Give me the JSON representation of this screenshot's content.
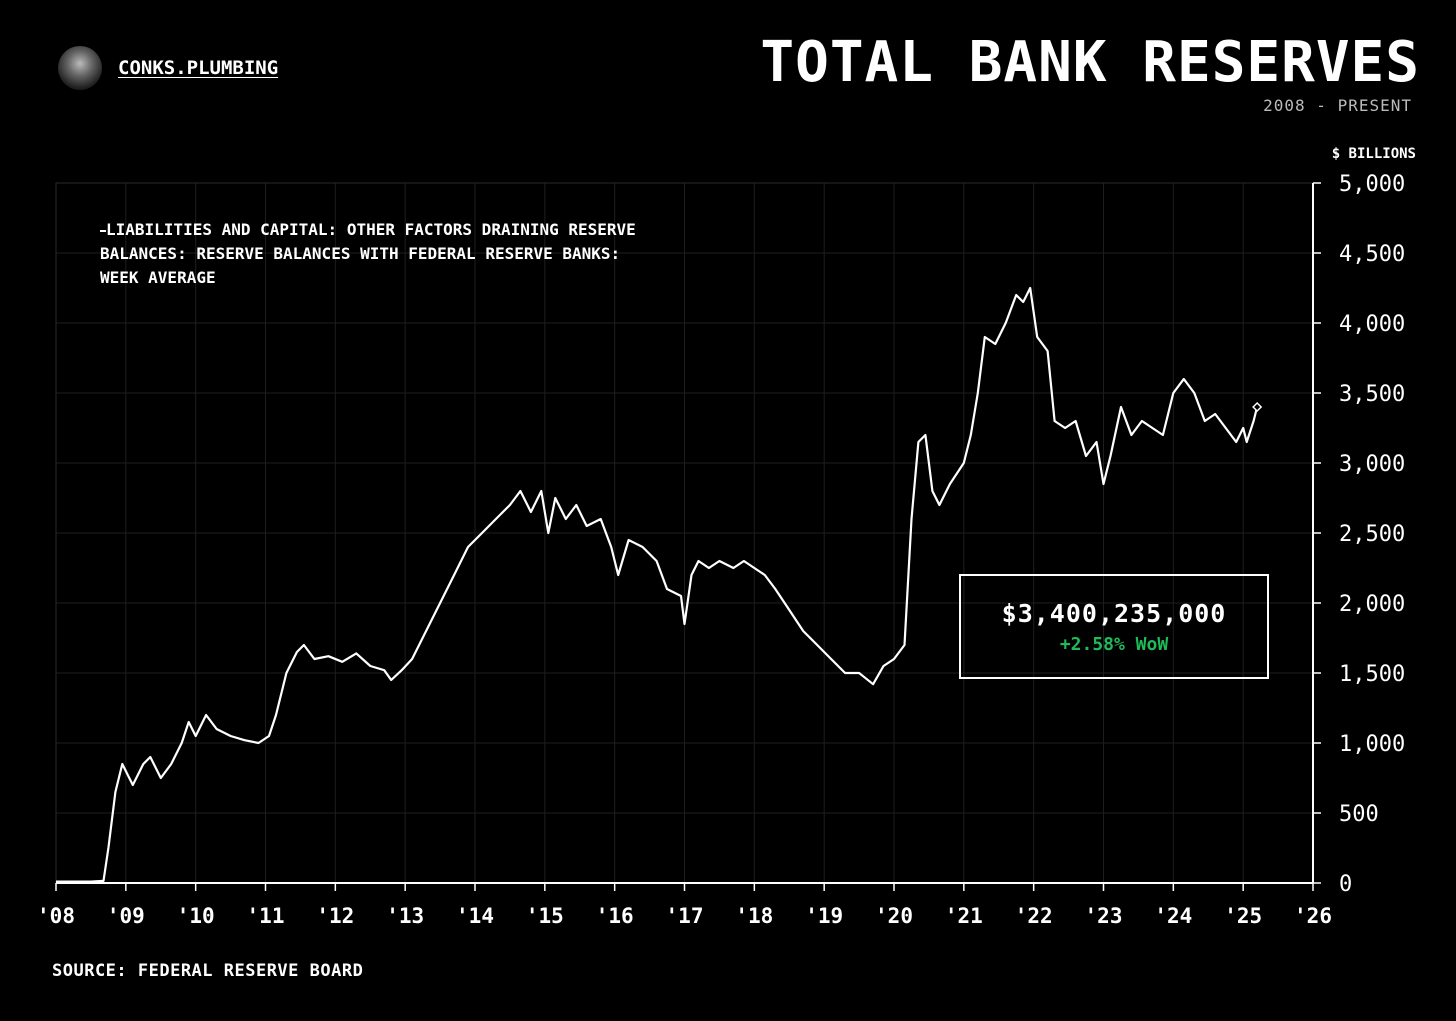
{
  "brand": {
    "name": "CONKS.PLUMBING"
  },
  "header": {
    "title": "TOTAL BANK RESERVES",
    "subtitle": "2008 - PRESENT"
  },
  "source": "SOURCE: FEDERAL RESERVE BOARD",
  "legend": {
    "label": "LIABILITIES AND CAPITAL: OTHER FACTORS DRAINING RESERVE BALANCES: RESERVE BALANCES WITH FEDERAL RESERVE BANKS: WEEK AVERAGE"
  },
  "callout": {
    "value": "$3,400,235,000",
    "change": "+2.58% WoW",
    "change_color": "#1fba5a"
  },
  "colors": {
    "background": "#000000",
    "line": "#ffffff",
    "grid": "#1e1e1e"
  },
  "chart_data": {
    "type": "line",
    "title": "TOTAL BANK RESERVES",
    "subtitle": "2008 - PRESENT",
    "ylabel": "$ BILLIONS",
    "xlabel": "",
    "xlim": [
      2008,
      2026
    ],
    "ylim": [
      0,
      5000
    ],
    "grid": true,
    "legend_position": "top-left",
    "x_ticks": [
      "'08",
      "'09",
      "'10",
      "'11",
      "'12",
      "'13",
      "'14",
      "'15",
      "'16",
      "'17",
      "'18",
      "'19",
      "'20",
      "'21",
      "'22",
      "'23",
      "'24",
      "'25",
      "'26"
    ],
    "y_ticks": [
      "0",
      "500",
      "1,000",
      "1,500",
      "2,000",
      "2,500",
      "3,000",
      "3,500",
      "4,000",
      "4,500",
      "5,000"
    ],
    "series": [
      {
        "name": "LIABILITIES AND CAPITAL: OTHER FACTORS DRAINING RESERVE BALANCES: RESERVE BALANCES WITH FEDERAL RESERVE BANKS: WEEK AVERAGE",
        "points": [
          [
            2008.0,
            10
          ],
          [
            2008.5,
            10
          ],
          [
            2008.68,
            15
          ],
          [
            2008.75,
            250
          ],
          [
            2008.85,
            650
          ],
          [
            2008.95,
            850
          ],
          [
            2009.0,
            800
          ],
          [
            2009.1,
            700
          ],
          [
            2009.25,
            850
          ],
          [
            2009.35,
            900
          ],
          [
            2009.5,
            750
          ],
          [
            2009.65,
            850
          ],
          [
            2009.8,
            1000
          ],
          [
            2009.9,
            1150
          ],
          [
            2010.0,
            1050
          ],
          [
            2010.15,
            1200
          ],
          [
            2010.3,
            1100
          ],
          [
            2010.5,
            1050
          ],
          [
            2010.7,
            1020
          ],
          [
            2010.9,
            1000
          ],
          [
            2011.05,
            1050
          ],
          [
            2011.15,
            1200
          ],
          [
            2011.3,
            1500
          ],
          [
            2011.45,
            1650
          ],
          [
            2011.55,
            1700
          ],
          [
            2011.7,
            1600
          ],
          [
            2011.9,
            1620
          ],
          [
            2012.1,
            1580
          ],
          [
            2012.3,
            1640
          ],
          [
            2012.5,
            1550
          ],
          [
            2012.7,
            1520
          ],
          [
            2012.8,
            1450
          ],
          [
            2012.95,
            1520
          ],
          [
            2013.1,
            1600
          ],
          [
            2013.3,
            1800
          ],
          [
            2013.5,
            2000
          ],
          [
            2013.7,
            2200
          ],
          [
            2013.9,
            2400
          ],
          [
            2014.1,
            2500
          ],
          [
            2014.3,
            2600
          ],
          [
            2014.5,
            2700
          ],
          [
            2014.65,
            2800
          ],
          [
            2014.8,
            2650
          ],
          [
            2014.95,
            2800
          ],
          [
            2015.05,
            2500
          ],
          [
            2015.15,
            2750
          ],
          [
            2015.3,
            2600
          ],
          [
            2015.45,
            2700
          ],
          [
            2015.6,
            2550
          ],
          [
            2015.8,
            2600
          ],
          [
            2015.95,
            2400
          ],
          [
            2016.05,
            2200
          ],
          [
            2016.2,
            2450
          ],
          [
            2016.4,
            2400
          ],
          [
            2016.6,
            2300
          ],
          [
            2016.75,
            2100
          ],
          [
            2016.95,
            2050
          ],
          [
            2017.0,
            1850
          ],
          [
            2017.1,
            2200
          ],
          [
            2017.2,
            2300
          ],
          [
            2017.35,
            2250
          ],
          [
            2017.5,
            2300
          ],
          [
            2017.7,
            2250
          ],
          [
            2017.85,
            2300
          ],
          [
            2018.0,
            2250
          ],
          [
            2018.15,
            2200
          ],
          [
            2018.3,
            2100
          ],
          [
            2018.5,
            1950
          ],
          [
            2018.7,
            1800
          ],
          [
            2018.9,
            1700
          ],
          [
            2019.1,
            1600
          ],
          [
            2019.3,
            1500
          ],
          [
            2019.5,
            1500
          ],
          [
            2019.7,
            1420
          ],
          [
            2019.85,
            1550
          ],
          [
            2020.0,
            1600
          ],
          [
            2020.15,
            1700
          ],
          [
            2020.25,
            2600
          ],
          [
            2020.35,
            3150
          ],
          [
            2020.45,
            3200
          ],
          [
            2020.55,
            2800
          ],
          [
            2020.65,
            2700
          ],
          [
            2020.8,
            2850
          ],
          [
            2021.0,
            3000
          ],
          [
            2021.1,
            3200
          ],
          [
            2021.2,
            3500
          ],
          [
            2021.3,
            3900
          ],
          [
            2021.45,
            3850
          ],
          [
            2021.6,
            4000
          ],
          [
            2021.75,
            4200
          ],
          [
            2021.85,
            4150
          ],
          [
            2021.95,
            4250
          ],
          [
            2022.05,
            3900
          ],
          [
            2022.2,
            3800
          ],
          [
            2022.3,
            3300
          ],
          [
            2022.45,
            3250
          ],
          [
            2022.6,
            3300
          ],
          [
            2022.75,
            3050
          ],
          [
            2022.9,
            3150
          ],
          [
            2023.0,
            2850
          ],
          [
            2023.1,
            3050
          ],
          [
            2023.25,
            3400
          ],
          [
            2023.4,
            3200
          ],
          [
            2023.55,
            3300
          ],
          [
            2023.7,
            3250
          ],
          [
            2023.85,
            3200
          ],
          [
            2024.0,
            3500
          ],
          [
            2024.15,
            3600
          ],
          [
            2024.3,
            3500
          ],
          [
            2024.45,
            3300
          ],
          [
            2024.6,
            3350
          ],
          [
            2024.75,
            3250
          ],
          [
            2024.9,
            3150
          ],
          [
            2025.0,
            3250
          ],
          [
            2025.05,
            3150
          ],
          [
            2025.15,
            3300
          ],
          [
            2025.2,
            3400
          ]
        ]
      }
    ]
  }
}
